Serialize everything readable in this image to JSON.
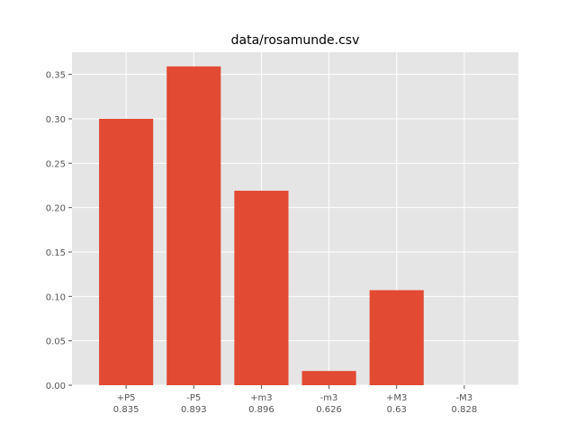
{
  "chart_data": {
    "type": "bar",
    "title": "data/rosamunde.csv",
    "xlabel": "",
    "ylabel": "",
    "categories": [
      "+P5",
      "-P5",
      "+m3",
      "-m3",
      "+M3",
      "-M3"
    ],
    "category_sublabels": [
      "0.835",
      "0.893",
      "0.896",
      "0.626",
      "0.63",
      "0.828"
    ],
    "values": [
      0.3,
      0.359,
      0.219,
      0.016,
      0.107,
      0.0
    ],
    "ylim": [
      0,
      0.375
    ],
    "yticks": [
      "0.00",
      "0.05",
      "0.10",
      "0.15",
      "0.20",
      "0.25",
      "0.30",
      "0.35"
    ],
    "grid": true,
    "legend": "none",
    "colors": {
      "bar": "#E24A33",
      "plot_background": "#E5E5E5",
      "grid": "#FFFFFF",
      "text": "#555555"
    }
  }
}
